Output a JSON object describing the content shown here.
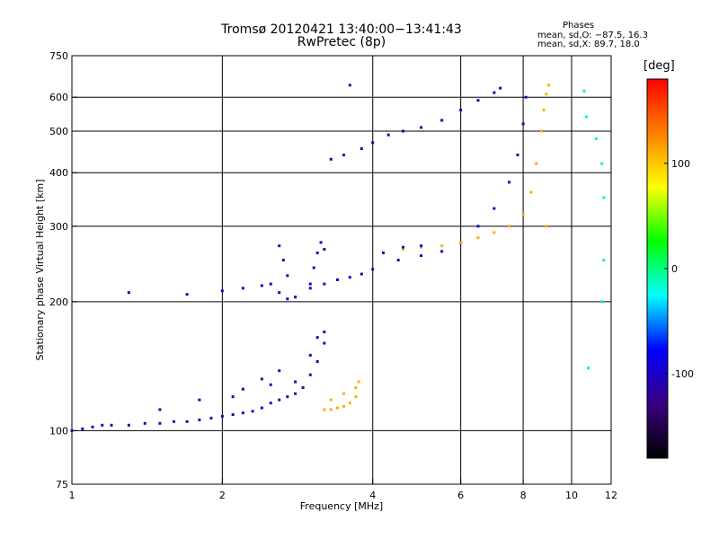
{
  "chart_data": {
    "type": "scatter",
    "title": "Tromsø 20120421 13:40:00−13:41:43",
    "subtitle": "RwPretec (8p)",
    "xlabel": "Frequency [MHz]",
    "ylabel": "Stationary phase Virtual Height [km]",
    "x_scale": "log",
    "y_scale": "log",
    "xlim": [
      1,
      12
    ],
    "ylim": [
      75,
      750
    ],
    "xticks": [
      1,
      2,
      4,
      6,
      8,
      10,
      12
    ],
    "yticks": [
      75,
      100,
      200,
      300,
      400,
      500,
      600,
      750
    ],
    "grid_x": [
      2,
      4,
      6,
      8,
      10
    ],
    "grid_y": [
      100,
      200,
      300,
      400,
      500,
      600
    ],
    "color_value": "phase [deg]",
    "series": [
      {
        "group": "E region echoes",
        "phase_approx": -110,
        "x": [
          1.0,
          1.05,
          1.1,
          1.15,
          1.2,
          1.3,
          1.4,
          1.5,
          1.6,
          1.7,
          1.8,
          1.9,
          2.0,
          2.1,
          2.2,
          2.3,
          2.4,
          2.5,
          2.6,
          2.7,
          2.8,
          2.9,
          3.0,
          3.1,
          3.2,
          2.2,
          2.4,
          2.6,
          2.8,
          3.0,
          3.1,
          3.2,
          1.5,
          1.8,
          2.1,
          2.5
        ],
        "y": [
          100,
          101,
          102,
          103,
          103,
          103,
          104,
          104,
          105,
          105,
          106,
          107,
          108,
          109,
          110,
          111,
          113,
          116,
          118,
          120,
          122,
          126,
          135,
          145,
          160,
          125,
          132,
          138,
          130,
          150,
          165,
          170,
          112,
          118,
          120,
          128
        ]
      },
      {
        "group": "E region sporadic (yellow)",
        "phase_approx": 110,
        "x": [
          3.2,
          3.3,
          3.4,
          3.5,
          3.6,
          3.7,
          3.75,
          3.3,
          3.5,
          3.7
        ],
        "y": [
          112,
          112,
          113,
          114,
          116,
          120,
          130,
          118,
          122,
          126
        ]
      },
      {
        "group": "F layer ordinary trace",
        "phase_approx": -100,
        "x": [
          1.3,
          1.7,
          2.0,
          2.2,
          2.4,
          2.5,
          2.6,
          2.7,
          2.8,
          3.0,
          3.2,
          3.4,
          3.6,
          3.8,
          4.0,
          4.5,
          5.0,
          5.5,
          6.0,
          6.5,
          7.0,
          7.5,
          7.8,
          8.0,
          8.1
        ],
        "y": [
          210,
          208,
          212,
          215,
          218,
          220,
          210,
          203,
          205,
          215,
          220,
          225,
          228,
          232,
          238,
          250,
          256,
          262,
          275,
          300,
          330,
          380,
          440,
          520,
          600
        ]
      },
      {
        "group": "F layer extraordinary trace",
        "phase_approx": 110,
        "x": [
          4.6,
          5.0,
          5.5,
          6.0,
          6.5,
          7.0,
          7.5,
          8.0,
          8.3,
          8.5,
          8.7,
          8.8,
          8.9,
          9.0,
          8.9
        ],
        "y": [
          265,
          268,
          270,
          275,
          282,
          290,
          300,
          320,
          360,
          420,
          500,
          560,
          610,
          640,
          300
        ]
      },
      {
        "group": "F layer extra echoes (blue)",
        "phase_approx": -100,
        "x": [
          3.0,
          3.05,
          3.1,
          3.15,
          3.2,
          2.6,
          2.65,
          2.7,
          4.2,
          4.6,
          5.0
        ],
        "y": [
          220,
          240,
          260,
          275,
          265,
          270,
          250,
          230,
          260,
          268,
          270
        ]
      },
      {
        "group": "Multiple-hop echoes",
        "phase_approx": -100,
        "x": [
          3.3,
          3.5,
          3.8,
          4.0,
          4.3,
          4.6,
          5.0,
          5.5,
          6.0,
          6.5,
          7.0,
          7.2,
          3.6
        ],
        "y": [
          430,
          440,
          455,
          470,
          490,
          500,
          510,
          530,
          560,
          590,
          615,
          630,
          640
        ]
      },
      {
        "group": "Scattered high-frequency echoes",
        "phase_approx": 0,
        "x": [
          10.6,
          10.7,
          11.2,
          11.5,
          11.6,
          11.6,
          11.5,
          10.8
        ],
        "y": [
          620,
          540,
          480,
          420,
          350,
          250,
          200,
          140
        ]
      }
    ],
    "colorbar": {
      "unit": "[deg]",
      "ticks": [
        100,
        0,
        -100
      ],
      "range": [
        -180,
        180
      ],
      "colors": [
        "#000000",
        "#3a0080",
        "#0000ff",
        "#00ffff",
        "#00ff00",
        "#ffff00",
        "#ff8000",
        "#ff0000"
      ]
    }
  },
  "labels": {
    "title": "Tromsø 20120421 13:40:00−13:41:43",
    "subtitle": "RwPretec (8p)",
    "phases_header": "Phases",
    "phase_o": "mean, sd,O: −87.5, 16.3",
    "phase_x": "mean, sd,X: 89.7, 18.0",
    "xlabel": "Frequency [MHz]",
    "ylabel": "Stationary phase Virtual Height [km]",
    "cbar_unit": "[deg]"
  }
}
